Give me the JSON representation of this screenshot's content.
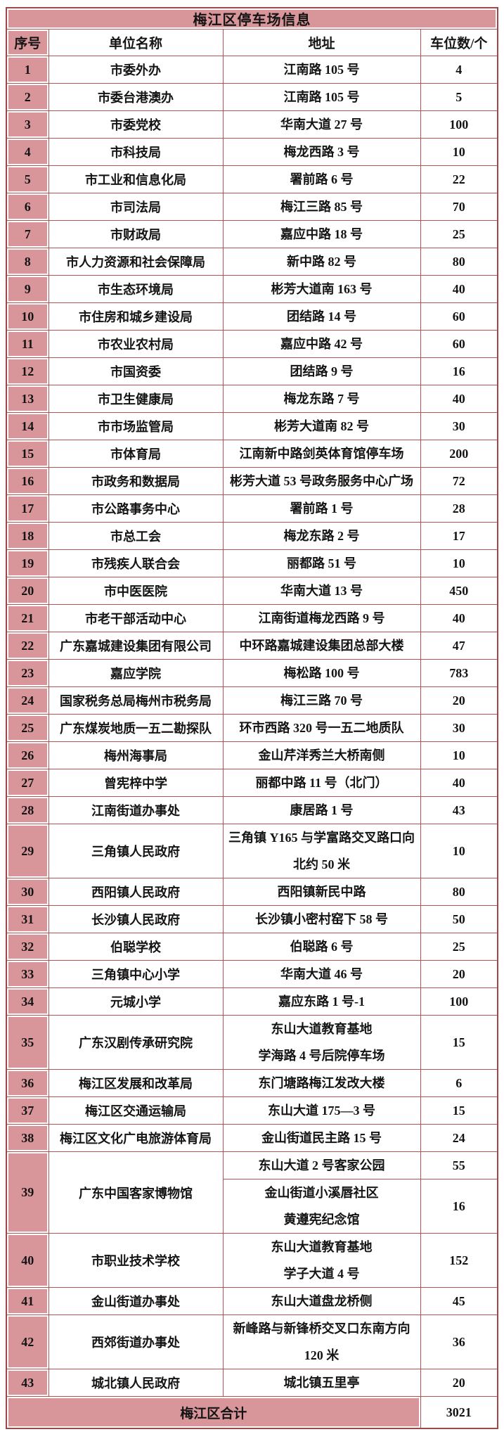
{
  "colors": {
    "row_accent": "#d9969a",
    "grid_border": "#b05552",
    "outer_border": "#9c4a47",
    "text": "#141414"
  },
  "table": {
    "title": "梅江区停车场信息",
    "columns": [
      "序号",
      "单位名称",
      "地址",
      "车位数/个"
    ],
    "rows": [
      {
        "no": "1",
        "name": "市委外办",
        "address": [
          "江南路105号"
        ],
        "count": "4"
      },
      {
        "no": "2",
        "name": "市委台港澳办",
        "address": [
          "江南路105号"
        ],
        "count": "5"
      },
      {
        "no": "3",
        "name": "市委党校",
        "address": [
          "华南大道27号"
        ],
        "count": "100"
      },
      {
        "no": "4",
        "name": "市科技局",
        "address": [
          "梅龙西路3号"
        ],
        "count": "10"
      },
      {
        "no": "5",
        "name": "市工业和信息化局",
        "address": [
          "署前路6号"
        ],
        "count": "22"
      },
      {
        "no": "6",
        "name": "市司法局",
        "address": [
          "梅江三路85号"
        ],
        "count": "70"
      },
      {
        "no": "7",
        "name": "市财政局",
        "address": [
          "嘉应中路18号"
        ],
        "count": "25"
      },
      {
        "no": "8",
        "name": "市人力资源和社会保障局",
        "address": [
          "新中路82号"
        ],
        "count": "80"
      },
      {
        "no": "9",
        "name": "市生态环境局",
        "address": [
          "彬芳大道南163号"
        ],
        "count": "40"
      },
      {
        "no": "10",
        "name": "市住房和城乡建设局",
        "address": [
          "团结路14号"
        ],
        "count": "60"
      },
      {
        "no": "11",
        "name": "市农业农村局",
        "address": [
          "嘉应中路42号"
        ],
        "count": "60"
      },
      {
        "no": "12",
        "name": "市国资委",
        "address": [
          "团结路9号"
        ],
        "count": "16"
      },
      {
        "no": "13",
        "name": "市卫生健康局",
        "address": [
          "梅龙东路7号"
        ],
        "count": "40"
      },
      {
        "no": "14",
        "name": "市市场监管局",
        "address": [
          "彬芳大道南82号"
        ],
        "count": "30"
      },
      {
        "no": "15",
        "name": "市体育局",
        "address": [
          "江南新中路剑英体育馆停车场"
        ],
        "count": "200"
      },
      {
        "no": "16",
        "name": "市政务和数据局",
        "address": [
          "彬芳大道53号政务服务中心广场"
        ],
        "count": "72"
      },
      {
        "no": "17",
        "name": "市公路事务中心",
        "address": [
          "署前路1号"
        ],
        "count": "28"
      },
      {
        "no": "18",
        "name": "市总工会",
        "address": [
          "梅龙东路2号"
        ],
        "count": "17"
      },
      {
        "no": "19",
        "name": "市残疾人联合会",
        "address": [
          "丽都路51号"
        ],
        "count": "10"
      },
      {
        "no": "20",
        "name": "市中医医院",
        "address": [
          "华南大道13号"
        ],
        "count": "450"
      },
      {
        "no": "21",
        "name": "市老干部活动中心",
        "address": [
          "江南街道梅龙西路9号"
        ],
        "count": "40"
      },
      {
        "no": "22",
        "name": "广东嘉城建设集团有限公司",
        "address": [
          "中环路嘉城建设集团总部大楼"
        ],
        "count": "47"
      },
      {
        "no": "23",
        "name": "嘉应学院",
        "address": [
          "梅松路100号"
        ],
        "count": "783"
      },
      {
        "no": "24",
        "name": "国家税务总局梅州市税务局",
        "address": [
          "梅江三路70号"
        ],
        "count": "20"
      },
      {
        "no": "25",
        "name": "广东煤炭地质一五二勘探队",
        "address": [
          "环市西路320号一五二地质队"
        ],
        "count": "30"
      },
      {
        "no": "26",
        "name": "梅州海事局",
        "address": [
          "金山芹洋秀兰大桥南侧"
        ],
        "count": "10"
      },
      {
        "no": "27",
        "name": "曾宪梓中学",
        "address": [
          "丽都中路11号（北门）"
        ],
        "count": "40"
      },
      {
        "no": "28",
        "name": "江南街道办事处",
        "address": [
          "康居路1号"
        ],
        "count": "43"
      },
      {
        "no": "29",
        "name": "三角镇人民政府",
        "address": [
          "三角镇Y165与学富路交叉路口向",
          "北约50米"
        ],
        "count": "10"
      },
      {
        "no": "30",
        "name": "西阳镇人民政府",
        "address": [
          "西阳镇新民中路"
        ],
        "count": "80"
      },
      {
        "no": "31",
        "name": "长沙镇人民政府",
        "address": [
          "长沙镇小密村窑下58号"
        ],
        "count": "50"
      },
      {
        "no": "32",
        "name": "伯聪学校",
        "address": [
          "伯聪路6号"
        ],
        "count": "25"
      },
      {
        "no": "33",
        "name": "三角镇中心小学",
        "address": [
          "华南大道46号"
        ],
        "count": "20"
      },
      {
        "no": "34",
        "name": "元城小学",
        "address": [
          "嘉应东路1号-1"
        ],
        "count": "100"
      },
      {
        "no": "35",
        "name": "广东汉剧传承研究院",
        "address": [
          "东山大道教育基地",
          "学海路4号后院停车场"
        ],
        "count": "15"
      },
      {
        "no": "36",
        "name": "梅江区发展和改革局",
        "address": [
          "东门塘路梅江发改大楼"
        ],
        "count": "6"
      },
      {
        "no": "37",
        "name": "梅江区交通运输局",
        "address": [
          "东山大道175—3号"
        ],
        "count": "15"
      },
      {
        "no": "38",
        "name": "梅江区文化广电旅游体育局",
        "address": [
          "金山街道民主路15号"
        ],
        "count": "24"
      },
      {
        "no": "39",
        "name": "广东中国客家博物馆",
        "sub_rows": [
          {
            "address": [
              "东山大道2号客家公园"
            ],
            "count": "55"
          },
          {
            "address": [
              "金山街道小溪唇社区",
              "黄遵宪纪念馆"
            ],
            "count": "16"
          }
        ]
      },
      {
        "no": "40",
        "name": "市职业技术学校",
        "address": [
          "东山大道教育基地",
          "学子大道4号"
        ],
        "count": "152"
      },
      {
        "no": "41",
        "name": "金山街道办事处",
        "address": [
          "东山大道盘龙桥侧"
        ],
        "count": "45"
      },
      {
        "no": "42",
        "name": "西郊街道办事处",
        "address": [
          "新峰路与新锋桥交叉口东南方向",
          "120米"
        ],
        "count": "36"
      },
      {
        "no": "43",
        "name": "城北镇人民政府",
        "address": [
          "城北镇五里亭"
        ],
        "count": "20"
      }
    ],
    "footer": {
      "label": "梅江区合计",
      "total": "3021"
    }
  }
}
